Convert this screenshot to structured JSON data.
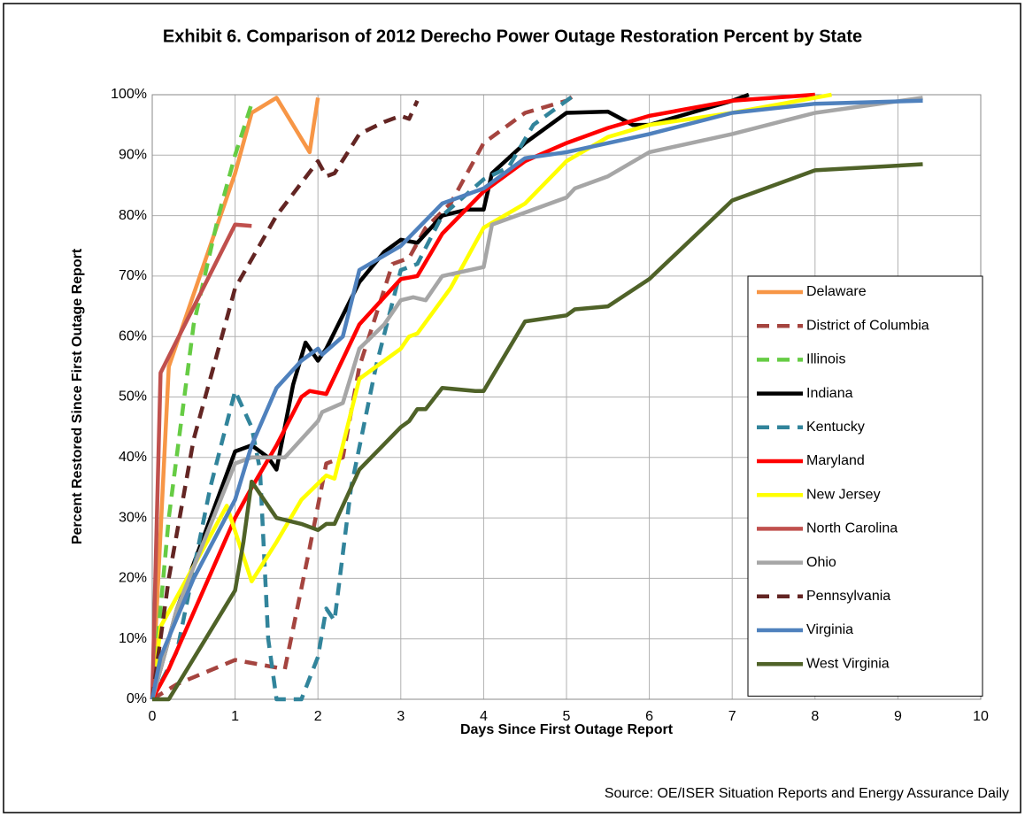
{
  "chart_data": {
    "type": "line",
    "title": "Exhibit 6. Comparison of 2012 Derecho Power Outage Restoration Percent by State",
    "x_label": "Days Since First Outage Report",
    "y_label": "Percent  Restored  Since First Outage Report",
    "source": "Source: OE/ISER Situation Reports and Energy Assurance Daily",
    "xlim": [
      0,
      10
    ],
    "xticks": [
      0,
      1,
      2,
      3,
      4,
      5,
      6,
      7,
      8,
      9,
      10
    ],
    "ylim": [
      0,
      100
    ],
    "yticks": [
      {
        "value": 0,
        "label": "0%"
      },
      {
        "value": 10,
        "label": "10%"
      },
      {
        "value": 20,
        "label": "20%"
      },
      {
        "value": 30,
        "label": "30%"
      },
      {
        "value": 40,
        "label": "40%"
      },
      {
        "value": 50,
        "label": "50%"
      },
      {
        "value": 60,
        "label": "60%"
      },
      {
        "value": 70,
        "label": "70%"
      },
      {
        "value": 80,
        "label": "80%"
      },
      {
        "value": 90,
        "label": "90%"
      },
      {
        "value": 100,
        "label": "100%"
      }
    ],
    "grid": true,
    "legend": "right",
    "series": [
      {
        "name": "Delaware",
        "color": "#f79646",
        "dashed": false,
        "x": [
          0,
          0.2,
          1,
          1.2,
          1.5,
          1.9,
          2
        ],
        "values": [
          0,
          55,
          87,
          97,
          99.5,
          90.5,
          99.5
        ]
      },
      {
        "name": "District of Columbia",
        "color": "#a5443f",
        "dashed": true,
        "x": [
          0,
          0.3,
          1,
          1.6,
          1.9,
          2.1,
          2.3,
          2.5,
          2.9,
          3.1,
          3.3,
          3.6,
          4,
          4.5,
          5,
          5.1
        ],
        "values": [
          0,
          2.5,
          6.5,
          5,
          25,
          39,
          40,
          55,
          72,
          73,
          78,
          82,
          92,
          97,
          99,
          100
        ]
      },
      {
        "name": "Illinois",
        "color": "#66cc44",
        "dashed": true,
        "x": [
          0,
          0.2,
          0.5,
          0.8,
          1,
          1.2
        ],
        "values": [
          0,
          30,
          62,
          80,
          90,
          98.5
        ]
      },
      {
        "name": "Indiana",
        "color": "#000000",
        "dashed": false,
        "x": [
          0,
          0.3,
          1,
          1.2,
          1.4,
          1.5,
          1.7,
          1.85,
          2,
          2.1,
          2.5,
          2.8,
          3,
          3.2,
          3.5,
          3.8,
          4,
          4.1,
          4.5,
          5,
          5.5,
          5.8,
          6,
          7,
          7.2
        ],
        "values": [
          0,
          15,
          41,
          42,
          40,
          38,
          52,
          59,
          56,
          58,
          69,
          74,
          76,
          75.5,
          80,
          81,
          81,
          87,
          92,
          97,
          97.2,
          95,
          95,
          99,
          100
        ]
      },
      {
        "name": "Kentucky",
        "color": "#31849b",
        "dashed": true,
        "x": [
          0,
          0.3,
          0.7,
          1,
          1.2,
          1.3,
          1.4,
          1.5,
          1.8,
          2,
          2.1,
          2.2,
          2.4,
          2.7,
          3,
          3.2,
          3.5,
          4,
          4.3,
          4.6,
          5,
          5.1
        ],
        "values": [
          0,
          8,
          35,
          51,
          45,
          38,
          10,
          0,
          0,
          7,
          15,
          13,
          35,
          55,
          71,
          72,
          80,
          86,
          88,
          95,
          99,
          100
        ]
      },
      {
        "name": "Maryland",
        "color": "#ff0000",
        "dashed": false,
        "x": [
          0,
          0.2,
          1,
          1.2,
          1.5,
          1.8,
          1.9,
          2.1,
          2.5,
          3,
          3.2,
          3.5,
          4,
          4.5,
          5,
          5.5,
          6,
          7,
          8
        ],
        "values": [
          0,
          5,
          30,
          35,
          42,
          50,
          51,
          50.5,
          62,
          69.5,
          70,
          77,
          84,
          89,
          92,
          94.5,
          96.5,
          99,
          100
        ]
      },
      {
        "name": "New Jersey",
        "color": "#ffff00",
        "dashed": false,
        "x": [
          0,
          0.1,
          0.9,
          1.2,
          1.5,
          1.8,
          2.1,
          2.2,
          2.5,
          3,
          3.1,
          3.2,
          3.6,
          4,
          4.5,
          5,
          5.5,
          6,
          7,
          8.2
        ],
        "values": [
          0,
          12,
          32,
          19.5,
          26,
          33,
          37,
          36.5,
          53,
          58,
          60,
          60.5,
          68,
          78,
          82,
          89,
          93,
          95,
          97,
          100
        ]
      },
      {
        "name": "North Carolina",
        "color": "#c0504d",
        "dashed": false,
        "x": [
          0,
          0.1,
          1,
          1.2
        ],
        "values": [
          0,
          54,
          78.5,
          78.3
        ]
      },
      {
        "name": "Ohio",
        "color": "#a6a6a6",
        "dashed": false,
        "x": [
          0,
          0.3,
          1,
          1.2,
          1.6,
          2,
          2.05,
          2.3,
          2.5,
          2.8,
          3,
          3.15,
          3.3,
          3.5,
          4,
          4.1,
          5,
          5.1,
          5.5,
          6,
          7,
          8,
          9.3
        ],
        "values": [
          0,
          15,
          39,
          40,
          40,
          46,
          47.5,
          49,
          58,
          62,
          66,
          66.5,
          66,
          70,
          71.5,
          78.5,
          83,
          84.5,
          86.5,
          90.5,
          93.5,
          97,
          99.5
        ]
      },
      {
        "name": "Pennsylvania",
        "color": "#632523",
        "dashed": true,
        "x": [
          0,
          0.2,
          0.5,
          0.8,
          1,
          1.5,
          2,
          2.1,
          2.2,
          2.5,
          2.8,
          3,
          3.1,
          3.2
        ],
        "values": [
          0,
          20,
          43,
          58,
          68,
          80,
          89,
          86.5,
          87,
          93.5,
          95.5,
          96.5,
          96,
          99
        ]
      },
      {
        "name": "Virginia",
        "color": "#4f81bd",
        "dashed": false,
        "x": [
          0,
          0.1,
          0.5,
          1,
          1.2,
          1.5,
          1.8,
          2,
          2.05,
          2.3,
          2.5,
          3,
          3.5,
          4,
          4.5,
          5,
          6,
          7,
          8,
          9.3
        ],
        "values": [
          0,
          7,
          20,
          33,
          42,
          51.5,
          56,
          58,
          57,
          60,
          71,
          75,
          82,
          84.5,
          89.5,
          90.5,
          93.5,
          97,
          98.5,
          99
        ]
      },
      {
        "name": "West Virginia",
        "color": "#4f6228",
        "dashed": false,
        "x": [
          0,
          0.2,
          1,
          1.1,
          1.2,
          1.5,
          1.8,
          2,
          2.1,
          2.2,
          2.5,
          3,
          3.1,
          3.2,
          3.3,
          3.5,
          3.9,
          4,
          4.5,
          5,
          5.1,
          5.5,
          6,
          7,
          8,
          9.3
        ],
        "values": [
          0,
          0,
          18,
          26,
          36,
          30,
          29,
          28,
          29,
          29,
          38,
          45,
          46,
          48,
          48,
          51.5,
          51,
          51,
          62.5,
          63.5,
          64.5,
          65,
          69.5,
          82.5,
          87.5,
          88.5
        ]
      }
    ]
  }
}
